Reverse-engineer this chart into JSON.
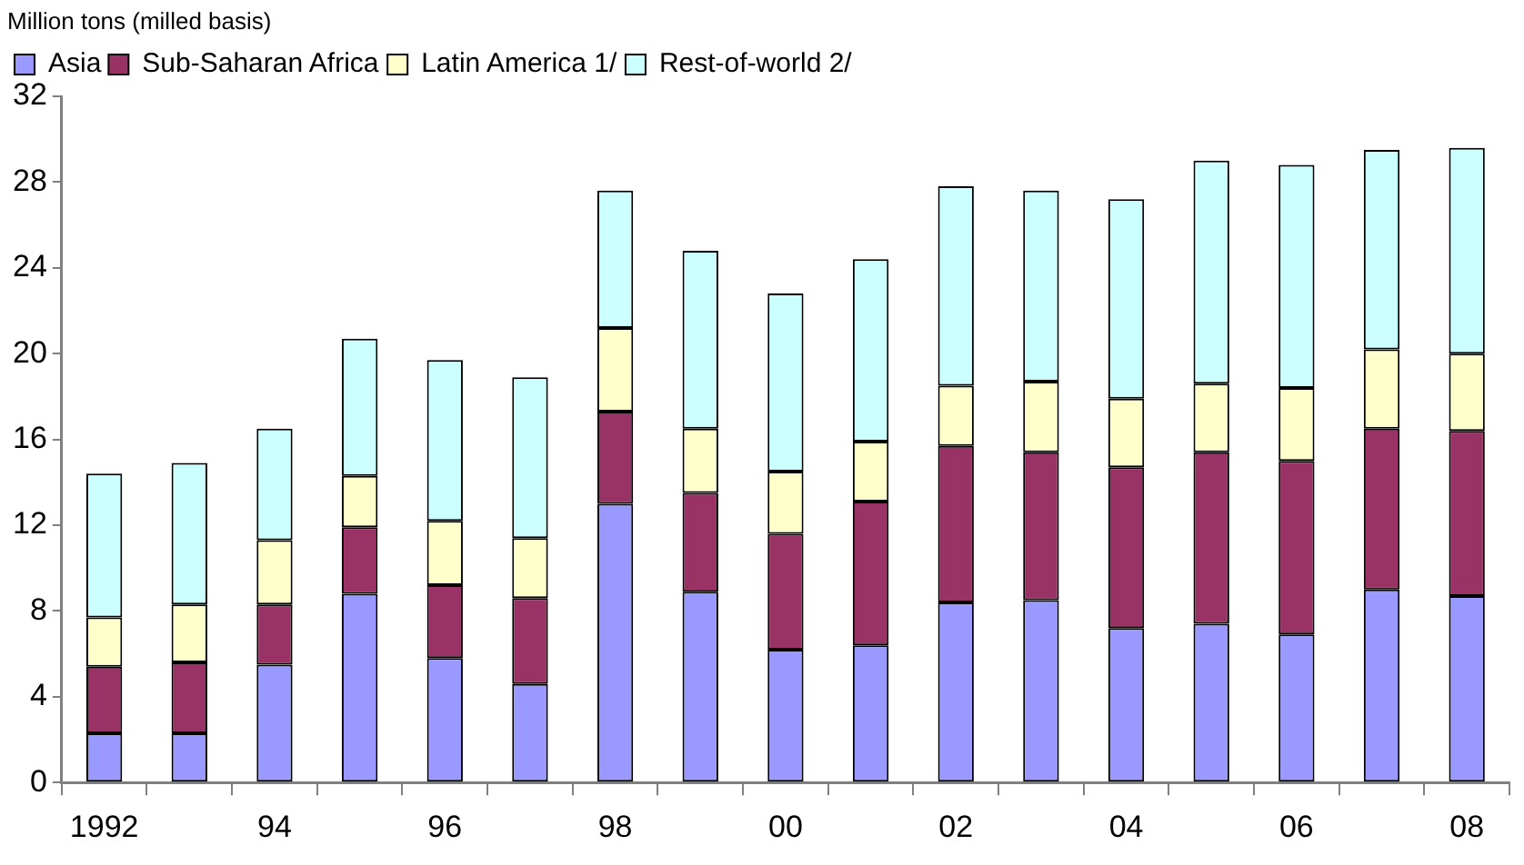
{
  "chart_data": {
    "type": "bar",
    "stacked": true,
    "ylabel": "Million tons (milled basis)",
    "categories": [
      "1992",
      null,
      "94",
      null,
      "96",
      null,
      "98",
      null,
      "00",
      null,
      "02",
      null,
      "04",
      null,
      "06",
      null,
      "08"
    ],
    "series": [
      {
        "name": "Asia",
        "color": "#9999ff",
        "values": [
          2.3,
          2.3,
          5.5,
          8.8,
          5.8,
          4.6,
          13.0,
          8.9,
          6.2,
          6.4,
          8.4,
          8.5,
          7.2,
          7.4,
          6.9,
          9.0,
          8.7
        ]
      },
      {
        "name": "Sub-Saharan Africa",
        "color": "#993366",
        "values": [
          3.1,
          3.3,
          2.8,
          3.1,
          3.4,
          4.0,
          4.3,
          4.6,
          5.4,
          6.7,
          7.3,
          6.9,
          7.5,
          8.0,
          8.1,
          7.5,
          7.7
        ]
      },
      {
        "name": "Latin America 1/",
        "color": "#ffffcc",
        "values": [
          2.3,
          2.7,
          3.0,
          2.4,
          3.0,
          2.8,
          3.9,
          3.0,
          2.9,
          2.8,
          2.8,
          3.3,
          3.2,
          3.2,
          3.4,
          3.7,
          3.6
        ]
      },
      {
        "name": "Rest-of-world 2/",
        "color": "#ccffff",
        "values": [
          6.7,
          6.6,
          5.2,
          6.4,
          7.5,
          7.5,
          6.4,
          8.3,
          8.3,
          8.5,
          9.3,
          8.9,
          9.3,
          10.4,
          10.4,
          9.3,
          9.6
        ]
      }
    ],
    "ylim": [
      0,
      32
    ],
    "yticks": [
      0,
      4,
      8,
      12,
      16,
      20,
      24,
      28,
      32
    ],
    "legend": "top left"
  }
}
